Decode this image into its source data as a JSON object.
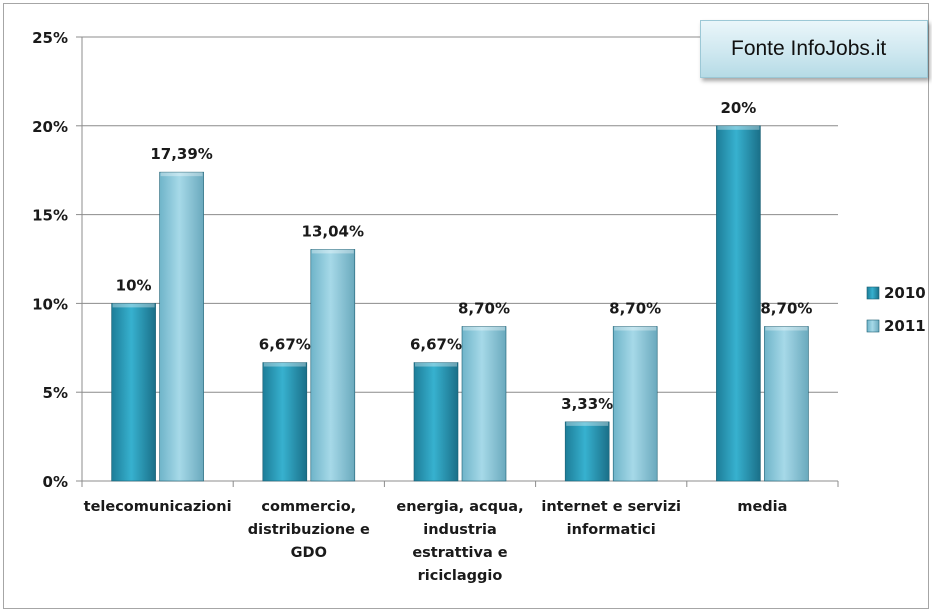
{
  "source_note": "Fonte InfoJobs.it",
  "colors": {
    "series_2010": "#2a9bb9",
    "series_2011": "#8fcbde",
    "gridline": "#8c8c8c",
    "text": "#1a1a1a"
  },
  "chart_data": {
    "type": "bar",
    "title": "",
    "xlabel": "",
    "ylabel": "",
    "ylim": [
      0,
      25
    ],
    "y_ticks": [
      "0%",
      "5%",
      "10%",
      "15%",
      "20%",
      "25%"
    ],
    "grid": true,
    "legend_position": "right",
    "categories": [
      [
        "telecomunicazioni"
      ],
      [
        "commercio,",
        "distribuzione e",
        "GDO"
      ],
      [
        "energia, acqua,",
        "industria",
        "estrattiva e",
        "riciclaggio"
      ],
      [
        "internet e servizi",
        "informatici"
      ],
      [
        "media"
      ]
    ],
    "series": [
      {
        "name": "2010",
        "values": [
          10,
          6.67,
          6.67,
          3.33,
          20
        ],
        "labels": [
          "10%",
          "6,67%",
          "6,67%",
          "3,33%",
          "20%"
        ]
      },
      {
        "name": "2011",
        "values": [
          17.39,
          13.04,
          8.7,
          8.7,
          8.7
        ],
        "labels": [
          "17,39%",
          "13,04%",
          "8,70%",
          "8,70%",
          "8,70%"
        ]
      }
    ]
  }
}
